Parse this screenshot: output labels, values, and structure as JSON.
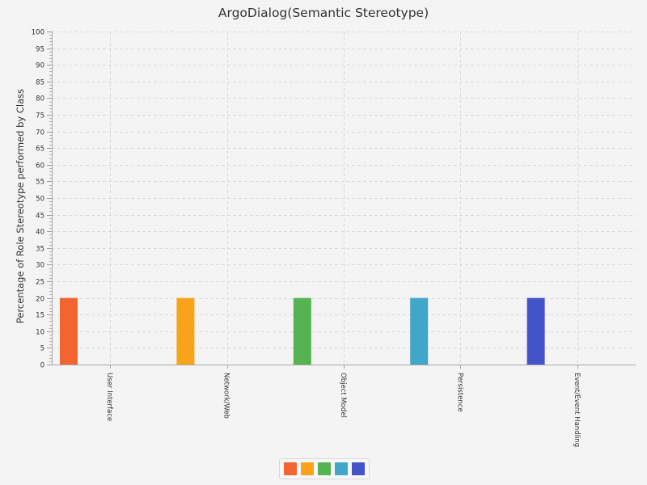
{
  "chart_data": {
    "type": "bar",
    "title": "ArgoDialog(Semantic Stereotype)",
    "xlabel": "",
    "ylabel": "Percentage of Role Stereotype performed by Class",
    "categories": [
      "User Interface",
      "Network/Web",
      "Object Model",
      "Persistence",
      "Event/Event Handling"
    ],
    "values": [
      20,
      20,
      20,
      20,
      20
    ],
    "colors": [
      "#f26430",
      "#f8a31b",
      "#55b352",
      "#41a6c8",
      "#4353c8"
    ],
    "ylim": [
      0,
      100
    ],
    "yticks": [
      0,
      5,
      10,
      15,
      20,
      25,
      30,
      35,
      40,
      45,
      50,
      55,
      60,
      65,
      70,
      75,
      80,
      85,
      90,
      95,
      100
    ],
    "grid": true,
    "legend": {
      "placement": "bottom-center",
      "swatch_colors": [
        "#f26430",
        "#f8a31b",
        "#55b352",
        "#41a6c8",
        "#4353c8"
      ]
    }
  }
}
